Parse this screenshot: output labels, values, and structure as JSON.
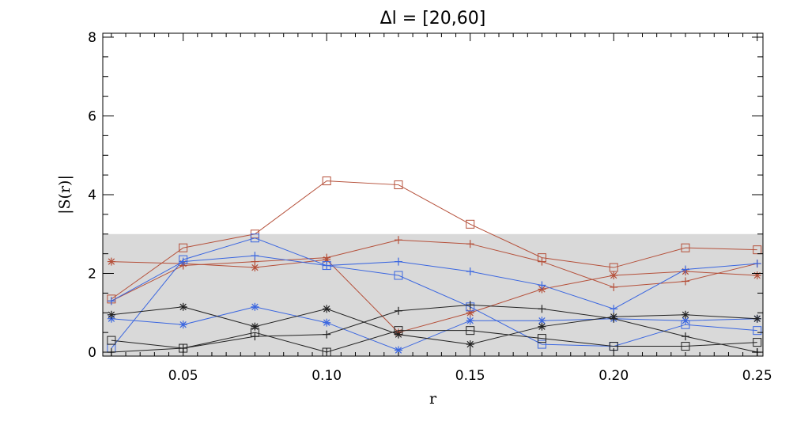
{
  "chart_data": {
    "type": "line",
    "title": "Δl = [20,60]",
    "xlabel": "r",
    "ylabel": "|S(r)|",
    "xlim": [
      0.022,
      0.252
    ],
    "ylim": [
      -0.1,
      8.1
    ],
    "x_ticks": [
      0.05,
      0.1,
      0.15,
      0.2,
      0.25
    ],
    "x_tick_labels": [
      "0.05",
      "0.10",
      "0.15",
      "0.20",
      "0.25"
    ],
    "y_ticks": [
      0,
      2,
      4,
      6,
      8
    ],
    "y_tick_labels": [
      "0",
      "2",
      "4",
      "6",
      "8"
    ],
    "shaded_band": {
      "y_from": -0.1,
      "y_to": 3.0,
      "color": "#d9d9d9"
    },
    "grid": false,
    "colors": {
      "red": "#b5503a",
      "blue": "#3a66e0",
      "black": "#222222"
    },
    "x": [
      0.025,
      0.05,
      0.075,
      0.1,
      0.125,
      0.15,
      0.175,
      0.2,
      0.225,
      0.25
    ],
    "series": [
      {
        "color": "red",
        "marker": "square",
        "values": [
          1.35,
          2.65,
          3.0,
          4.35,
          4.25,
          3.25,
          2.4,
          2.15,
          2.65,
          2.6
        ]
      },
      {
        "color": "red",
        "marker": "plus",
        "values": [
          1.3,
          2.2,
          2.3,
          2.4,
          2.85,
          2.75,
          2.3,
          1.65,
          1.8,
          2.25
        ]
      },
      {
        "color": "red",
        "marker": "asterisk",
        "values": [
          2.3,
          2.25,
          2.15,
          2.35,
          0.5,
          1.0,
          1.6,
          1.95,
          2.05,
          1.95
        ]
      },
      {
        "color": "blue",
        "marker": "square",
        "values": [
          0.1,
          2.35,
          2.9,
          2.2,
          1.95,
          1.15,
          0.2,
          0.15,
          0.7,
          0.55
        ]
      },
      {
        "color": "blue",
        "marker": "plus",
        "values": [
          1.3,
          2.3,
          2.45,
          2.2,
          2.3,
          2.05,
          1.7,
          1.1,
          2.1,
          2.25
        ]
      },
      {
        "color": "blue",
        "marker": "asterisk",
        "values": [
          0.85,
          0.7,
          1.15,
          0.75,
          0.05,
          0.8,
          0.8,
          0.85,
          0.8,
          0.85
        ]
      },
      {
        "color": "black",
        "marker": "square",
        "values": [
          0.3,
          0.1,
          0.5,
          0.0,
          0.55,
          0.55,
          0.35,
          0.15,
          0.15,
          0.25
        ]
      },
      {
        "color": "black",
        "marker": "plus",
        "values": [
          0.0,
          0.1,
          0.4,
          0.45,
          1.05,
          1.2,
          1.1,
          0.85,
          0.4,
          0.0
        ]
      },
      {
        "color": "black",
        "marker": "asterisk",
        "values": [
          0.95,
          1.15,
          0.65,
          1.1,
          0.45,
          0.2,
          0.65,
          0.9,
          0.95,
          0.85
        ]
      }
    ]
  }
}
